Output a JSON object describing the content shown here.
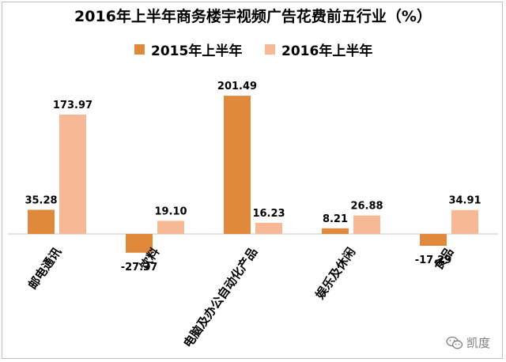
{
  "chart_data": {
    "type": "bar",
    "title": "2016年上半年商务楼宇视频广告花费前五行业（%）",
    "categories": [
      "邮电通讯",
      "饮料",
      "电脑及办公自动化产品",
      "娱乐及休闲",
      "食品"
    ],
    "series": [
      {
        "name": "2015年上半年",
        "values": [
          35.28,
          -27.37,
          201.49,
          8.21,
          -17.29
        ],
        "labels": [
          "35.28",
          "-27.37",
          "201.49",
          "8.21",
          "-17.29"
        ],
        "color": "#E0893D"
      },
      {
        "name": "2016年上半年",
        "values": [
          173.97,
          19.1,
          16.23,
          26.88,
          34.91
        ],
        "labels": [
          "173.97",
          "19.10",
          "16.23",
          "26.88",
          "34.91"
        ],
        "color": "#F7B896"
      }
    ],
    "legend_position": "top",
    "grid": false,
    "ylim": [
      -30,
      210
    ]
  },
  "watermark": {
    "text": "凯度",
    "icon": "wechat-icon"
  }
}
